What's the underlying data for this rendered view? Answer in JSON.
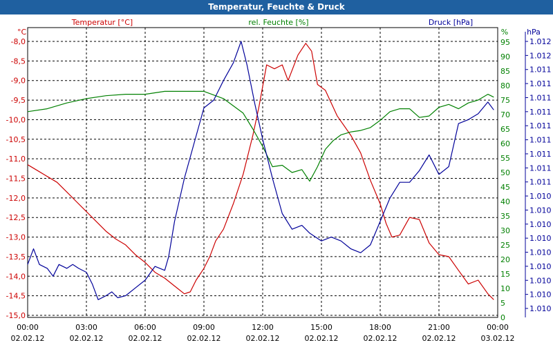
{
  "window": {
    "title": "Temperatur, Feuchte & Druck"
  },
  "colors": {
    "temperature": "#cc0000",
    "humidity": "#008000",
    "pressure": "#000099",
    "grid": "#000000",
    "titlebar": "#1f60a0"
  },
  "chart_data": {
    "type": "line",
    "grid": true,
    "x_ticks": [
      {
        "time": "00:00",
        "date": "02.02.12"
      },
      {
        "time": "03:00",
        "date": "02.02.12"
      },
      {
        "time": "06:00",
        "date": "02.02.12"
      },
      {
        "time": "09:00",
        "date": "02.02.12"
      },
      {
        "time": "12:00",
        "date": "02.02.12"
      },
      {
        "time": "15:00",
        "date": "02.02.12"
      },
      {
        "time": "18:00",
        "date": "02.02.12"
      },
      {
        "time": "21:00",
        "date": "02.02.12"
      },
      {
        "time": "00:00",
        "date": "03.02.12"
      }
    ],
    "x_range_hours": [
      0,
      24
    ],
    "axes": {
      "temperature": {
        "unit": "°C",
        "ylim": [
          -15.0,
          -8.0
        ],
        "ticks": [
          "-8,0",
          "-8,5",
          "-9,0",
          "-9,5",
          "-10,0",
          "-10,5",
          "-11,0",
          "-11,5",
          "-12,0",
          "-12,5",
          "-13,0",
          "-13,5",
          "-14,0",
          "-14,5",
          "-15,0"
        ]
      },
      "humidity": {
        "unit": "%",
        "ylim": [
          0,
          100
        ],
        "ticks": [
          "100",
          "95",
          "90",
          "85",
          "80",
          "75",
          "70",
          "65",
          "60",
          "55",
          "50",
          "45",
          "40",
          "35",
          "30",
          "25",
          "20",
          "15",
          "10",
          "5",
          "0"
        ]
      },
      "pressure": {
        "unit": "hPa",
        "ticks": [
          "1.012",
          "1.012",
          "1.011",
          "1.011",
          "1.011",
          "1.011",
          "1.011",
          "1.011",
          "1.011",
          "1.011",
          "1.011",
          "1.010",
          "1.010",
          "1.010",
          "1.010",
          "1.010",
          "1.010",
          "1.010",
          "1.010",
          "1.010"
        ]
      }
    },
    "series": [
      {
        "name": "Temperatur [°C]",
        "axis": "temperature",
        "points": [
          [
            0,
            -11.15
          ],
          [
            0.5,
            -11.3
          ],
          [
            1,
            -11.45
          ],
          [
            1.5,
            -11.6
          ],
          [
            2,
            -11.85
          ],
          [
            2.5,
            -12.1
          ],
          [
            3,
            -12.35
          ],
          [
            3.5,
            -12.6
          ],
          [
            4,
            -12.85
          ],
          [
            4.5,
            -13.05
          ],
          [
            5,
            -13.2
          ],
          [
            5.5,
            -13.45
          ],
          [
            6,
            -13.65
          ],
          [
            6.5,
            -13.9
          ],
          [
            7,
            -14.05
          ],
          [
            7.5,
            -14.25
          ],
          [
            8,
            -14.45
          ],
          [
            8.3,
            -14.4
          ],
          [
            8.6,
            -14.1
          ],
          [
            9,
            -13.8
          ],
          [
            9.3,
            -13.5
          ],
          [
            9.6,
            -13.1
          ],
          [
            10,
            -12.8
          ],
          [
            10.5,
            -12.15
          ],
          [
            11,
            -11.4
          ],
          [
            11.5,
            -10.4
          ],
          [
            11.8,
            -9.7
          ],
          [
            12.2,
            -8.6
          ],
          [
            12.6,
            -8.7
          ],
          [
            13,
            -8.6
          ],
          [
            13.3,
            -9.0
          ],
          [
            13.8,
            -8.35
          ],
          [
            14.2,
            -8.05
          ],
          [
            14.5,
            -8.25
          ],
          [
            14.8,
            -9.1
          ],
          [
            15.2,
            -9.25
          ],
          [
            15.8,
            -9.9
          ],
          [
            16.5,
            -10.4
          ],
          [
            17,
            -10.85
          ],
          [
            17.5,
            -11.55
          ],
          [
            18,
            -12.15
          ],
          [
            18.3,
            -12.65
          ],
          [
            18.6,
            -13.0
          ],
          [
            19,
            -12.95
          ],
          [
            19.5,
            -12.5
          ],
          [
            20,
            -12.55
          ],
          [
            20.5,
            -13.15
          ],
          [
            21,
            -13.45
          ],
          [
            21.5,
            -13.5
          ],
          [
            22,
            -13.85
          ],
          [
            22.5,
            -14.2
          ],
          [
            23,
            -14.1
          ],
          [
            23.5,
            -14.45
          ],
          [
            23.8,
            -14.6
          ]
        ]
      },
      {
        "name": "rel. Feuchte [%]",
        "axis": "humidity",
        "points": [
          [
            0,
            71
          ],
          [
            1,
            72
          ],
          [
            2,
            74
          ],
          [
            3,
            75.5
          ],
          [
            4,
            76.5
          ],
          [
            5,
            77
          ],
          [
            6,
            77
          ],
          [
            7,
            78
          ],
          [
            8,
            78
          ],
          [
            9,
            78
          ],
          [
            10,
            75.5
          ],
          [
            11,
            70.5
          ],
          [
            11.5,
            65
          ],
          [
            12,
            59
          ],
          [
            12.5,
            52
          ],
          [
            13,
            52.5
          ],
          [
            13.5,
            50
          ],
          [
            14,
            51
          ],
          [
            14.4,
            47
          ],
          [
            14.8,
            52
          ],
          [
            15.2,
            58
          ],
          [
            15.6,
            61
          ],
          [
            16,
            63
          ],
          [
            16.5,
            64
          ],
          [
            17,
            64.5
          ],
          [
            17.5,
            65.5
          ],
          [
            18,
            68
          ],
          [
            18.5,
            71
          ],
          [
            19,
            72
          ],
          [
            19.5,
            72
          ],
          [
            20,
            69
          ],
          [
            20.5,
            69.5
          ],
          [
            21,
            72.5
          ],
          [
            21.5,
            73.5
          ],
          [
            22,
            72
          ],
          [
            22.5,
            74
          ],
          [
            23,
            75
          ],
          [
            23.5,
            77
          ],
          [
            23.8,
            76
          ]
        ]
      },
      {
        "name": "Druck [hPa]",
        "axis": "pressure",
        "points": [
          [
            0,
            -13.7
          ],
          [
            0.3,
            -13.3
          ],
          [
            0.6,
            -13.7
          ],
          [
            1,
            -13.8
          ],
          [
            1.3,
            -14.0
          ],
          [
            1.6,
            -13.7
          ],
          [
            2,
            -13.8
          ],
          [
            2.3,
            -13.7
          ],
          [
            2.6,
            -13.8
          ],
          [
            3,
            -13.9
          ],
          [
            3.3,
            -14.2
          ],
          [
            3.6,
            -14.6
          ],
          [
            4,
            -14.5
          ],
          [
            4.3,
            -14.4
          ],
          [
            4.6,
            -14.55
          ],
          [
            5,
            -14.5
          ],
          [
            5.5,
            -14.3
          ],
          [
            6,
            -14.1
          ],
          [
            6.5,
            -13.75
          ],
          [
            7,
            -13.85
          ],
          [
            7.2,
            -13.5
          ],
          [
            7.5,
            -12.6
          ],
          [
            8,
            -11.5
          ],
          [
            8.5,
            -10.6
          ],
          [
            9,
            -9.7
          ],
          [
            9.5,
            -9.5
          ],
          [
            10,
            -9.0
          ],
          [
            10.5,
            -8.55
          ],
          [
            10.9,
            -8.0
          ],
          [
            11.2,
            -8.6
          ],
          [
            11.6,
            -9.6
          ],
          [
            12,
            -10.5
          ],
          [
            12.5,
            -11.5
          ],
          [
            13,
            -12.4
          ],
          [
            13.5,
            -12.8
          ],
          [
            14,
            -12.7
          ],
          [
            14.4,
            -12.9
          ],
          [
            15,
            -13.1
          ],
          [
            15.5,
            -13.0
          ],
          [
            16,
            -13.1
          ],
          [
            16.5,
            -13.3
          ],
          [
            17,
            -13.4
          ],
          [
            17.5,
            -13.2
          ],
          [
            18,
            -12.6
          ],
          [
            18.5,
            -12.0
          ],
          [
            19,
            -11.6
          ],
          [
            19.5,
            -11.6
          ],
          [
            20,
            -11.3
          ],
          [
            20.5,
            -10.9
          ],
          [
            21,
            -11.4
          ],
          [
            21.5,
            -11.2
          ],
          [
            22,
            -10.1
          ],
          [
            22.5,
            -10.0
          ],
          [
            23,
            -9.85
          ],
          [
            23.5,
            -9.55
          ],
          [
            23.8,
            -9.75
          ]
        ]
      }
    ]
  }
}
